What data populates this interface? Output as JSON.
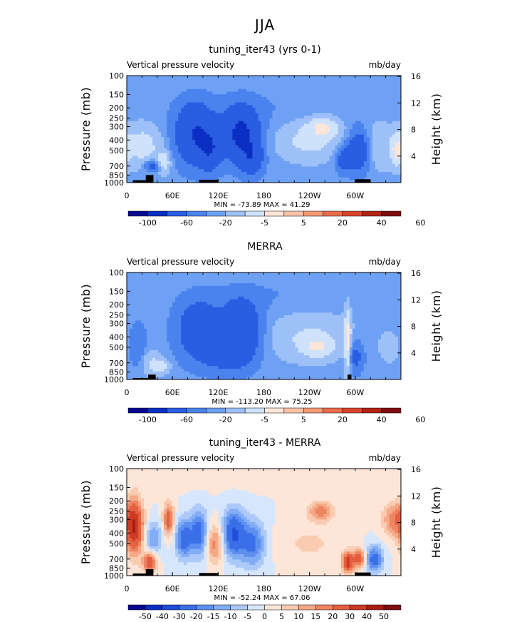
{
  "figure_title": "JJA",
  "colors": {
    "topo": "#000000",
    "frame": "#000000",
    "ramp_a": [
      "#08088e",
      "#0a2fc2",
      "#2a5de2",
      "#4a83ee",
      "#6ea1f3",
      "#9ec0f8",
      "#cfe2fb",
      "#fde6d8",
      "#f9c3a7",
      "#f29975",
      "#e96c4c",
      "#d8452e",
      "#b32318",
      "#7e0d0d"
    ],
    "ramp_b": [
      "#08088e",
      "#0a2fc2",
      "#1f4ed9",
      "#3a6fe8",
      "#5d8ff0",
      "#82adf5",
      "#acc9f9",
      "#d6e6fc",
      "#fde6d8",
      "#f9cbb0",
      "#f5a986",
      "#ee8460",
      "#e35f3f",
      "#cc3a24",
      "#a81d14",
      "#7e0d0d"
    ]
  },
  "chart_data": [
    {
      "type": "heatmap",
      "title": "tuning_iter43 (yrs 0-1)",
      "left_string": "Vertical pressure velocity",
      "right_string": "mb/day",
      "ylabel": "Pressure (mb)",
      "ylabel_right": "Height (km)",
      "y_ticks": [
        "100",
        "150",
        "200",
        "250",
        "300",
        "400",
        "500",
        "700",
        "850",
        "1000"
      ],
      "y_ticks_right": [
        "16",
        "12",
        "8",
        "4"
      ],
      "x_ticks": [
        "0",
        "60E",
        "120E",
        "180",
        "120W",
        "60W"
      ],
      "y_log": true,
      "ylim": [
        1000,
        100
      ],
      "xlim": [
        0,
        360
      ],
      "min_max": "MIN = -73.89   MAX =  41.29",
      "colorbar_levels": [
        "-100",
        "-60",
        "-20",
        "-5",
        "5",
        "20",
        "40",
        "60"
      ],
      "ramp": "ramp_a",
      "fields": [
        {
          "lon": 20,
          "p": 450,
          "sx": 18,
          "sy": 0.6,
          "v": 30
        },
        {
          "lon": 35,
          "p": 700,
          "sx": 8,
          "sy": 0.18,
          "v": -40
        },
        {
          "lon": 48,
          "p": 650,
          "sx": 6,
          "sy": 0.3,
          "v": 40
        },
        {
          "lon": 90,
          "p": 350,
          "sx": 18,
          "sy": 0.9,
          "v": -60
        },
        {
          "lon": 110,
          "p": 500,
          "sx": 10,
          "sy": 0.6,
          "v": -40
        },
        {
          "lon": 150,
          "p": 350,
          "sx": 16,
          "sy": 0.8,
          "v": -70
        },
        {
          "lon": 165,
          "p": 600,
          "sx": 10,
          "sy": 0.5,
          "v": -40
        },
        {
          "lon": 200,
          "p": 200,
          "sx": 80,
          "sy": 0.9,
          "v": -5
        },
        {
          "lon": 240,
          "p": 400,
          "sx": 30,
          "sy": 0.6,
          "v": 28
        },
        {
          "lon": 258,
          "p": 300,
          "sx": 14,
          "sy": 0.3,
          "v": 35
        },
        {
          "lon": 285,
          "p": 600,
          "sx": 8,
          "sy": 0.4,
          "v": -35
        },
        {
          "lon": 305,
          "p": 500,
          "sx": 10,
          "sy": 0.6,
          "v": -50
        },
        {
          "lon": 330,
          "p": 450,
          "sx": 14,
          "sy": 0.7,
          "v": 18
        },
        {
          "lon": 355,
          "p": 500,
          "sx": 6,
          "sy": 0.5,
          "v": 35
        },
        {
          "lon": 180,
          "p": 110,
          "sx": 200,
          "sy": 0.4,
          "v": 4
        }
      ],
      "topography": [
        [
          8,
          34,
          1000,
          950
        ],
        [
          25,
          35,
          1000,
          850
        ],
        [
          95,
          120,
          1000,
          940
        ],
        [
          300,
          320,
          1000,
          930
        ]
      ]
    },
    {
      "type": "heatmap",
      "title": "MERRA",
      "left_string": "Vertical pressure velocity",
      "right_string": "mb/day",
      "ylabel": "Pressure (mb)",
      "ylabel_right": "Height (km)",
      "y_ticks": [
        "100",
        "150",
        "200",
        "250",
        "300",
        "400",
        "500",
        "700",
        "850",
        "1000"
      ],
      "y_ticks_right": [
        "16",
        "12",
        "8",
        "4"
      ],
      "x_ticks": [
        "0",
        "60E",
        "120E",
        "180",
        "120W",
        "60W"
      ],
      "y_log": true,
      "ylim": [
        1000,
        100
      ],
      "xlim": [
        0,
        360
      ],
      "min_max": "MIN = -113.20   MAX =  75.25",
      "colorbar_levels": [
        "-100",
        "-60",
        "-20",
        "-5",
        "5",
        "20",
        "40",
        "60"
      ],
      "ramp": "ramp_a",
      "fields": [
        {
          "lon": 15,
          "p": 500,
          "sx": 8,
          "sy": 0.7,
          "v": -20
        },
        {
          "lon": 30,
          "p": 700,
          "sx": 10,
          "sy": 0.4,
          "v": 20
        },
        {
          "lon": 45,
          "p": 750,
          "sx": 8,
          "sy": 0.2,
          "v": 30
        },
        {
          "lon": 95,
          "p": 350,
          "sx": 20,
          "sy": 0.9,
          "v": -45
        },
        {
          "lon": 150,
          "p": 350,
          "sx": 18,
          "sy": 0.9,
          "v": -55
        },
        {
          "lon": 130,
          "p": 600,
          "sx": 20,
          "sy": 0.5,
          "v": -25
        },
        {
          "lon": 240,
          "p": 400,
          "sx": 38,
          "sy": 0.7,
          "v": 22
        },
        {
          "lon": 250,
          "p": 500,
          "sx": 14,
          "sy": 0.3,
          "v": 30
        },
        {
          "lon": 290,
          "p": 450,
          "sx": 3,
          "sy": 1.0,
          "v": 50
        },
        {
          "lon": 300,
          "p": 600,
          "sx": 8,
          "sy": 0.5,
          "v": -30
        },
        {
          "lon": 345,
          "p": 500,
          "sx": 10,
          "sy": 0.5,
          "v": 12
        },
        {
          "lon": 200,
          "p": 150,
          "sx": 80,
          "sy": 0.6,
          "v": -6
        },
        {
          "lon": 180,
          "p": 110,
          "sx": 200,
          "sy": 0.4,
          "v": 4
        }
      ],
      "topography": [
        [
          8,
          34,
          1000,
          970
        ],
        [
          28,
          38,
          1000,
          900
        ],
        [
          290,
          295,
          1000,
          900
        ]
      ]
    },
    {
      "type": "heatmap",
      "title": "tuning_iter43 - MERRA",
      "left_string": "Vertical pressure velocity",
      "right_string": "mb/day",
      "ylabel": "Pressure (mb)",
      "ylabel_right": "Height (km)",
      "y_ticks": [
        "100",
        "150",
        "200",
        "250",
        "300",
        "400",
        "500",
        "700",
        "850",
        "1000"
      ],
      "y_ticks_right": [
        "16",
        "12",
        "8",
        "4"
      ],
      "x_ticks": [
        "0",
        "60E",
        "120E",
        "180",
        "120W",
        "60W"
      ],
      "y_log": true,
      "ylim": [
        1000,
        100
      ],
      "xlim": [
        0,
        360
      ],
      "min_max": "MIN = -52.24   MAX =  67.06",
      "colorbar_levels": [
        "-50",
        "-40",
        "-30",
        "-20",
        "-15",
        "-10",
        "-5",
        "0",
        "5",
        "10",
        "15",
        "20",
        "30",
        "40",
        "50"
      ],
      "ramp": "ramp_b",
      "fields": [
        {
          "lon": 10,
          "p": 350,
          "sx": 8,
          "sy": 0.8,
          "v": 40
        },
        {
          "lon": 35,
          "p": 450,
          "sx": 8,
          "sy": 0.5,
          "v": -15
        },
        {
          "lon": 30,
          "p": 750,
          "sx": 6,
          "sy": 0.3,
          "v": 30
        },
        {
          "lon": 55,
          "p": 300,
          "sx": 5,
          "sy": 0.5,
          "v": 25
        },
        {
          "lon": 75,
          "p": 450,
          "sx": 8,
          "sy": 0.6,
          "v": -25
        },
        {
          "lon": 95,
          "p": 400,
          "sx": 8,
          "sy": 0.7,
          "v": -25
        },
        {
          "lon": 115,
          "p": 500,
          "sx": 8,
          "sy": 0.6,
          "v": 18
        },
        {
          "lon": 140,
          "p": 400,
          "sx": 10,
          "sy": 0.7,
          "v": -30
        },
        {
          "lon": 165,
          "p": 500,
          "sx": 12,
          "sy": 0.7,
          "v": -22
        },
        {
          "lon": 255,
          "p": 250,
          "sx": 12,
          "sy": 0.3,
          "v": 18
        },
        {
          "lon": 240,
          "p": 500,
          "sx": 30,
          "sy": 0.6,
          "v": 6
        },
        {
          "lon": 290,
          "p": 750,
          "sx": 5,
          "sy": 0.3,
          "v": 35
        },
        {
          "lon": 305,
          "p": 700,
          "sx": 6,
          "sy": 0.3,
          "v": 25
        },
        {
          "lon": 325,
          "p": 700,
          "sx": 8,
          "sy": 0.4,
          "v": -25
        },
        {
          "lon": 350,
          "p": 300,
          "sx": 10,
          "sy": 0.5,
          "v": 18
        },
        {
          "lon": 180,
          "p": 110,
          "sx": 200,
          "sy": 0.4,
          "v": 3
        }
      ],
      "topography": [
        [
          8,
          34,
          1000,
          955
        ],
        [
          25,
          35,
          1000,
          870
        ],
        [
          95,
          120,
          1000,
          945
        ],
        [
          300,
          320,
          1000,
          935
        ]
      ]
    }
  ]
}
